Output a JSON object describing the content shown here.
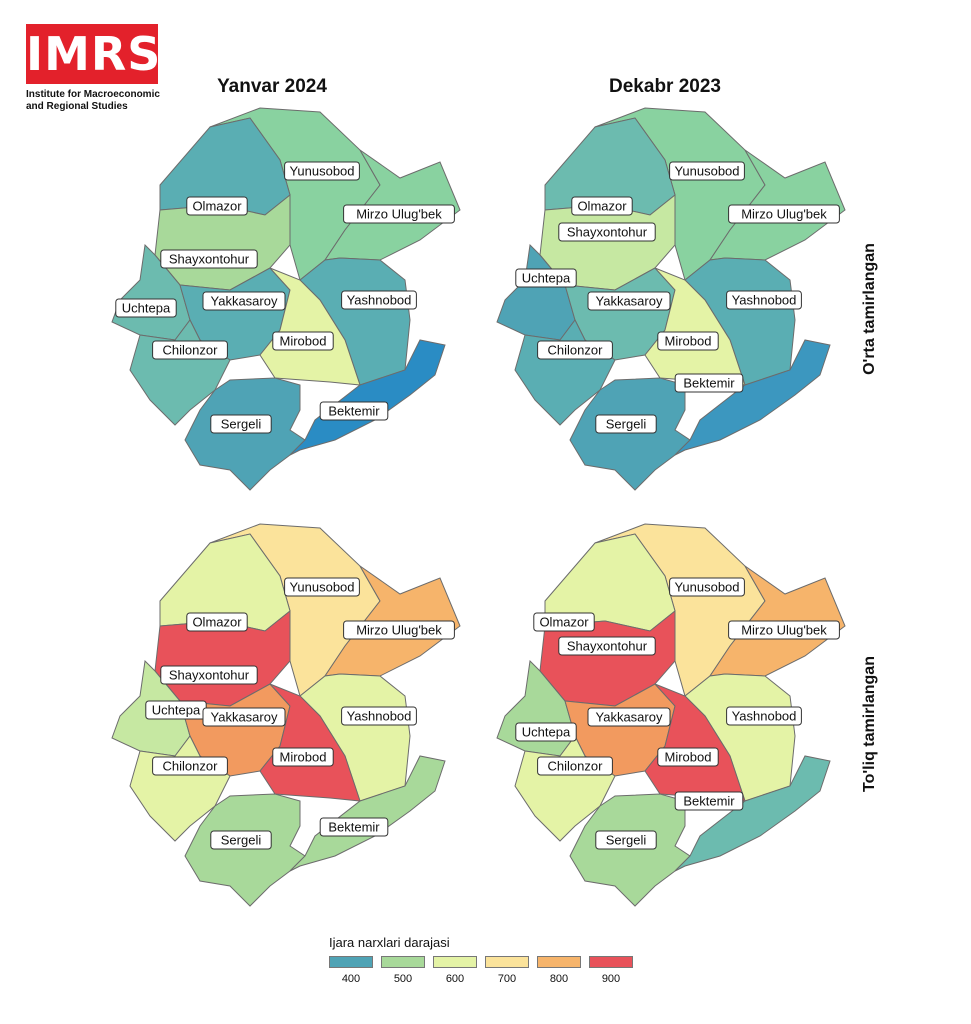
{
  "logo": {
    "text": "IMRS",
    "subtitle_line1": "Institute for Macroeconomic",
    "subtitle_line2": "and Regional Studies",
    "color": "#e3212b"
  },
  "columns": [
    "Yanvar 2024",
    "Dekabr 2023"
  ],
  "rows": [
    "O'rta tamirlangan",
    "To'liq tamirlangan"
  ],
  "legend": {
    "title": "Ijara narxlari darajasi",
    "items": [
      {
        "label": "400",
        "color": "#4fa3b5"
      },
      {
        "label": "500",
        "color": "#a8d99a"
      },
      {
        "label": "600",
        "color": "#e4f3a6"
      },
      {
        "label": "700",
        "color": "#fbe39b"
      },
      {
        "label": "800",
        "color": "#f6b46b"
      },
      {
        "label": "900",
        "color": "#e8525a"
      }
    ]
  },
  "districts": [
    "Yunusobod",
    "Olmazor",
    "Mirzo Ulug'bek",
    "Shayxontohur",
    "Uchtepa",
    "Yakkasaroy",
    "Yashnobod",
    "Chilonzor",
    "Mirobod",
    "Sergeli",
    "Bektemir"
  ],
  "panels": [
    {
      "column": "Yanvar 2024",
      "row": "O'rta tamirlangan",
      "fills": {
        "Olmazor": "#5aaeb3",
        "Yunusobod": "#89d2a0",
        "Mirzo Ulug'bek": "#89d2a0",
        "Shayxontohur": "#a8d99a",
        "Uchtepa": "#6cbbaf",
        "Yakkasaroy": "#5aaeb3",
        "Yashnobod": "#5aaeb3",
        "Chilonzor": "#6cbbaf",
        "Mirobod": "#e4f3a6",
        "Sergeli": "#4fa3b5",
        "Bektemir": "#2a8cc4"
      }
    },
    {
      "column": "Dekabr 2023",
      "row": "O'rta tamirlangan",
      "fills": {
        "Olmazor": "#6cbbaf",
        "Yunusobod": "#89d2a0",
        "Mirzo Ulug'bek": "#89d2a0",
        "Shayxontohur": "#c6e8a2",
        "Uchtepa": "#4fa3b5",
        "Yakkasaroy": "#6cbbaf",
        "Yashnobod": "#5aaeb3",
        "Chilonzor": "#5aaeb3",
        "Mirobod": "#e4f3a6",
        "Sergeli": "#4fa3b5",
        "Bektemir": "#3c97bf"
      }
    },
    {
      "column": "Yanvar 2024",
      "row": "To'liq tamirlangan",
      "fills": {
        "Olmazor": "#e4f3a6",
        "Yunusobod": "#fbe39b",
        "Mirzo Ulug'bek": "#f6b46b",
        "Shayxontohur": "#e8525a",
        "Uchtepa": "#c6e8a2",
        "Yakkasaroy": "#f29a5f",
        "Yashnobod": "#e4f3a6",
        "Chilonzor": "#e4f3a6",
        "Mirobod": "#e8525a",
        "Sergeli": "#a8d99a",
        "Bektemir": "#a8d99a"
      }
    },
    {
      "column": "Dekabr 2023",
      "row": "To'liq tamirlangan",
      "fills": {
        "Olmazor": "#e4f3a6",
        "Yunusobod": "#fbe39b",
        "Mirzo Ulug'bek": "#f6b46b",
        "Shayxontohur": "#e8525a",
        "Uchtepa": "#a8d99a",
        "Yakkasaroy": "#f29a5f",
        "Yashnobod": "#e4f3a6",
        "Chilonzor": "#e4f3a6",
        "Mirobod": "#e8525a",
        "Sergeli": "#a8d99a",
        "Bektemir": "#6cbbaf"
      }
    }
  ]
}
